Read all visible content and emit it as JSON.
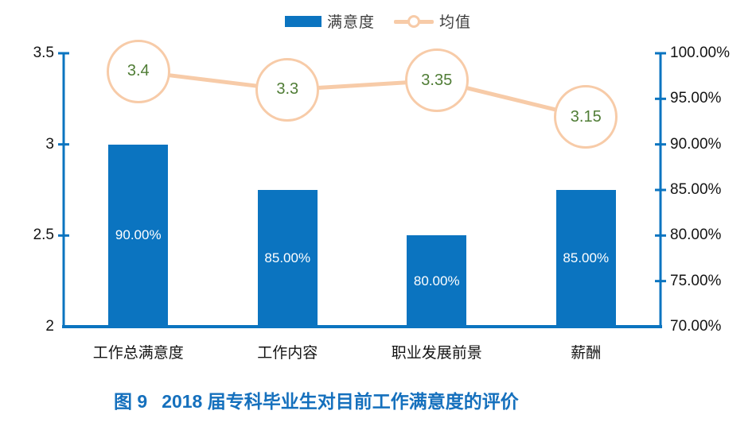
{
  "legend": {
    "items": [
      {
        "label": "满意度",
        "marker": "bar-swatch",
        "color": "#0B74C0"
      },
      {
        "label": "均值",
        "marker": "line-circle-marker",
        "color": "#F7CBA8"
      }
    ],
    "position": "top-center"
  },
  "chart_data": {
    "type": "bar+line combo",
    "categories": [
      "工作总满意度",
      "工作内容",
      "职业发展前景",
      "薪酬"
    ],
    "series": [
      {
        "name": "满意度",
        "type": "bar",
        "yaxis": "right",
        "values": [
          90,
          85,
          80,
          85
        ],
        "labels": [
          "90.00%",
          "85.00%",
          "80.00%",
          "85.00%"
        ]
      },
      {
        "name": "均值",
        "type": "line",
        "yaxis": "left",
        "values": [
          3.4,
          3.3,
          3.35,
          3.15
        ],
        "labels": [
          "3.4",
          "3.3",
          "3.35",
          "3.15"
        ]
      }
    ],
    "left_axis": {
      "min": 2,
      "max": 3.5,
      "ticks": [
        3.5,
        3,
        2.5,
        2
      ],
      "tick_labels": [
        "3.5",
        "3",
        "2.5",
        "2"
      ]
    },
    "right_axis": {
      "min": 70,
      "max": 100,
      "ticks": [
        100,
        95,
        90,
        85,
        80,
        75,
        70
      ],
      "tick_labels": [
        "100.00%",
        "95.00%",
        "90.00%",
        "85.00%",
        "80.00%",
        "75.00%",
        "70.00%"
      ]
    },
    "grid": false,
    "legend_position": "top"
  },
  "caption": {
    "figure_label": "图 9",
    "text": "2018 届专科毕业生对目前工作满意度的评价"
  },
  "colors": {
    "bar": "#0B74C0",
    "axis": "#0B74C0",
    "line": "#F7CBA8",
    "mean_text": "#507D36",
    "bar_label_text": "#FFFFFF",
    "caption_text": "#1570BD"
  }
}
